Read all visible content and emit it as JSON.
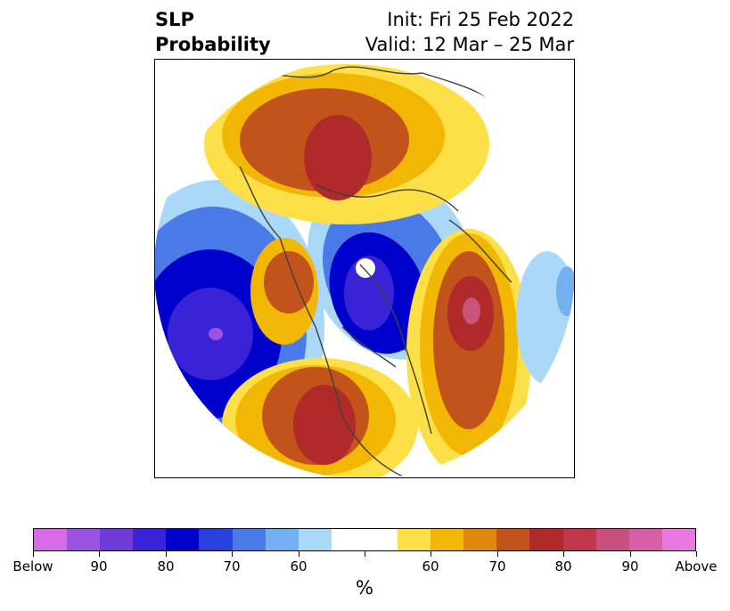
{
  "title": {
    "left_line1": "SLP",
    "left_line2": "Probability",
    "right_line1": "Init: Fri 25 Feb 2022",
    "right_line2": "Valid: 12 Mar – 25 Mar"
  },
  "map": {
    "projection": "north-polar-stereographic",
    "field": "sea level pressure tercile probability",
    "colors": {
      "below_high": "#3a22d6",
      "below_mid": "#0000cc",
      "below_low": "#4a7ae8",
      "below_weak": "#a9d8f8",
      "above_weak": "#fde047",
      "above_low": "#f2b705",
      "above_mid": "#c2531b",
      "above_high": "#b02a2a",
      "above_extreme": "#c8547a",
      "coast": "#404040"
    }
  },
  "colorbar": {
    "segments": [
      "#d76be6",
      "#9c52e0",
      "#6e3ad8",
      "#3a22d6",
      "#0000cc",
      "#2a40dd",
      "#4a7ae8",
      "#72b0f2",
      "#a9d8f8",
      "#ffffff",
      "#ffffff",
      "#fde047",
      "#f2b705",
      "#e0870e",
      "#c2531b",
      "#b02a2a",
      "#c0374c",
      "#c85080",
      "#d85ea8",
      "#e879e0"
    ],
    "ticks": [
      "Below",
      "90",
      "80",
      "70",
      "60",
      "",
      "60",
      "70",
      "80",
      "90",
      "Above"
    ],
    "unit_label": "%"
  }
}
